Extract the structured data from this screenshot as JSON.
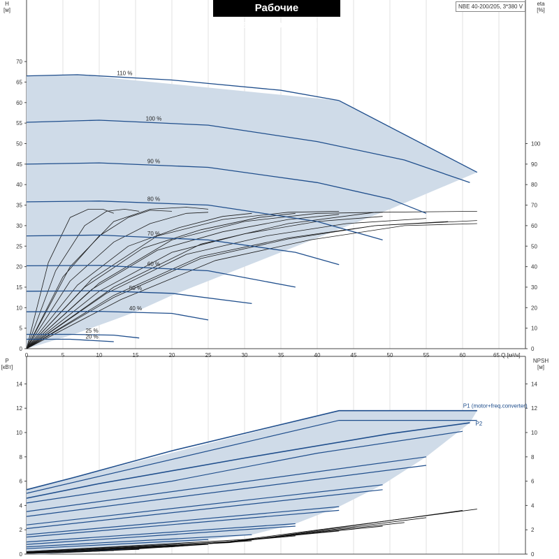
{
  "title": "Рабочие характеристики",
  "model": "NBE 40-200/205, 3*380 V",
  "chart_data": [
    {
      "type": "line",
      "name": "head-efficiency",
      "y_label": "H",
      "y_unit": "[м]",
      "y2_label": "eta",
      "y2_unit": "[%]",
      "x_label": "Q [м³/ч]",
      "x_axis_label": "65 Q [м³/ч]",
      "xlim": [
        0,
        65
      ],
      "ylim": [
        0,
        70
      ],
      "y2lim": [
        0,
        100
      ],
      "x_ticks": [
        0,
        5,
        10,
        15,
        20,
        25,
        30,
        35,
        40,
        45,
        50,
        55,
        60
      ],
      "y_ticks": [
        0,
        5,
        10,
        15,
        20,
        25,
        30,
        35,
        40,
        45,
        50,
        55,
        60,
        65,
        70
      ],
      "y2_ticks": [
        0,
        10,
        20,
        30,
        40,
        50,
        60,
        70,
        80,
        90,
        100
      ],
      "grid": true,
      "envelope": [
        [
          0,
          66.5
        ],
        [
          7,
          66.8
        ],
        [
          43,
          60.5
        ],
        [
          62,
          43
        ],
        [
          50,
          34
        ],
        [
          40,
          27
        ],
        [
          30,
          20
        ],
        [
          20,
          13
        ],
        [
          15,
          9
        ],
        [
          12,
          7
        ],
        [
          6.5,
          3.5
        ],
        [
          0,
          0
        ]
      ],
      "head_curves": [
        {
          "label": "110 %",
          "x": [
            0,
            7,
            20,
            35,
            43
          ],
          "y": [
            66.5,
            66.8,
            65.5,
            63,
            60.5
          ]
        },
        {
          "label": "100 %",
          "x": [
            0,
            10,
            25,
            40,
            52,
            61
          ],
          "y": [
            55.2,
            55.7,
            54.5,
            50.5,
            46,
            40.5
          ]
        },
        {
          "label": "90 %",
          "x": [
            0,
            10,
            25,
            40,
            50,
            55
          ],
          "y": [
            45,
            45.3,
            44.2,
            40.5,
            36.5,
            33
          ]
        },
        {
          "label": "80 %",
          "x": [
            0,
            10,
            25,
            40,
            49
          ],
          "y": [
            35.8,
            36,
            35,
            31,
            26.5
          ]
        },
        {
          "label": "70 %",
          "x": [
            0,
            10,
            25,
            37,
            43
          ],
          "y": [
            27.5,
            27.7,
            26.5,
            23.5,
            20.5
          ]
        },
        {
          "label": "60 %",
          "x": [
            0,
            10,
            25,
            37
          ],
          "y": [
            20.2,
            20.3,
            19,
            15
          ]
        },
        {
          "label": "50 %",
          "x": [
            0,
            10,
            20,
            31
          ],
          "y": [
            14,
            14.1,
            13.5,
            11
          ]
        },
        {
          "label": "40 %",
          "x": [
            0,
            10,
            20,
            25
          ],
          "y": [
            9,
            9.1,
            8.6,
            7
          ]
        },
        {
          "label": "25 %",
          "x": [
            0,
            6,
            12,
            15.5
          ],
          "y": [
            3.5,
            3.5,
            3.3,
            2.6
          ]
        },
        {
          "label": "20 %",
          "x": [
            0,
            6,
            12
          ],
          "y": [
            2.3,
            2.3,
            1.7
          ]
        }
      ],
      "eta_curves": [
        {
          "x": [
            0,
            3,
            6,
            8.5,
            10.5,
            12
          ],
          "y": [
            0,
            42,
            64,
            68,
            68,
            66
          ]
        },
        {
          "x": [
            0,
            4,
            8,
            11,
            13.5,
            15.5
          ],
          "y": [
            0,
            38,
            60,
            67,
            68,
            67
          ]
        },
        {
          "x": [
            0,
            5,
            10,
            14,
            17,
            20
          ],
          "y": [
            0,
            35,
            55,
            64,
            67.5,
            67
          ]
        },
        {
          "x": [
            0,
            6,
            12,
            17,
            22,
            25
          ],
          "y": [
            0,
            33,
            52,
            61,
            66,
            66.5
          ]
        },
        {
          "x": [
            0,
            7,
            14,
            21,
            27,
            31
          ],
          "y": [
            0,
            31,
            50,
            59,
            64.5,
            66
          ]
        },
        {
          "x": [
            0,
            8,
            16,
            24,
            32,
            37
          ],
          "y": [
            0,
            30,
            49,
            58,
            64,
            66
          ]
        },
        {
          "x": [
            0,
            9,
            18,
            27,
            36,
            43
          ],
          "y": [
            0,
            29,
            48,
            57,
            63,
            65.5
          ]
        },
        {
          "x": [
            0,
            10,
            20,
            30,
            40,
            49
          ],
          "y": [
            0,
            28,
            47,
            56,
            62,
            64.5
          ]
        },
        {
          "x": [
            0,
            11,
            22,
            33,
            44,
            55
          ],
          "y": [
            0,
            27,
            46,
            55,
            61,
            63.5
          ]
        },
        {
          "x": [
            0,
            12,
            24,
            36,
            48,
            62
          ],
          "y": [
            0,
            26,
            45,
            54,
            60,
            62.5
          ]
        },
        {
          "x": [
            0,
            12,
            24,
            36,
            48,
            58
          ],
          "y": [
            0,
            25,
            44,
            53.5,
            60,
            62
          ]
        },
        {
          "x": [
            0,
            13,
            26,
            39,
            52,
            62
          ],
          "y": [
            0,
            24,
            43,
            53,
            60,
            61
          ]
        },
        {
          "x": [
            0,
            6,
            12,
            17,
            22,
            25
          ],
          "y": [
            0,
            40,
            62,
            68,
            69,
            68
          ]
        },
        {
          "x": [
            0,
            9,
            18,
            27,
            36,
            43
          ],
          "y": [
            0,
            34,
            55,
            63,
            66.5,
            67
          ]
        },
        {
          "x": [
            0,
            12,
            24,
            36,
            48,
            62
          ],
          "y": [
            0,
            30,
            51,
            61,
            66.5,
            67
          ]
        },
        {
          "x": [
            0,
            10,
            20,
            30,
            40,
            49
          ],
          "y": [
            0,
            32,
            53,
            62,
            66,
            66.5
          ]
        }
      ]
    },
    {
      "type": "line",
      "name": "power-npsh",
      "y_label": "P",
      "y_unit": "[кВт]",
      "y2_label": "NPSH",
      "y2_unit": "[м]",
      "xlim": [
        0,
        65
      ],
      "ylim": [
        0,
        15
      ],
      "y_ticks": [
        0,
        2,
        4,
        6,
        8,
        10,
        12,
        14
      ],
      "y2_ticks": [
        0,
        2,
        4,
        6,
        8,
        10,
        12,
        14
      ],
      "grid": true,
      "envelope": [
        [
          0,
          5.3
        ],
        [
          6.5,
          6.3
        ],
        [
          43,
          11.8
        ],
        [
          62,
          11.8
        ],
        [
          61,
          10.8
        ],
        [
          55,
          8
        ],
        [
          49,
          5.7
        ],
        [
          43,
          3.9
        ],
        [
          37,
          2.5
        ],
        [
          31,
          1.6
        ],
        [
          25,
          1.2
        ],
        [
          15.5,
          0.4
        ],
        [
          12,
          0.3
        ],
        [
          2.5,
          0
        ],
        [
          0,
          0
        ]
      ],
      "series": [
        {
          "name": "P1 (motor+freq.converter)",
          "x": [
            0,
            6.5,
            20,
            43,
            62
          ],
          "y": [
            5.3,
            6.3,
            8.5,
            11.8,
            11.8
          ]
        },
        {
          "name": "P2",
          "x": [
            0,
            10,
            30,
            50,
            61
          ],
          "y": [
            4.6,
            5.8,
            7.9,
            9.9,
            10.8
          ]
        }
      ],
      "power_lines": [
        {
          "x": [
            0,
            43,
            62
          ],
          "y": [
            5.0,
            11.0,
            11.0
          ]
        },
        {
          "x": [
            0,
            20,
            40,
            60
          ],
          "y": [
            4.2,
            6.0,
            8.3,
            10.1
          ]
        },
        {
          "x": [
            0,
            55
          ],
          "y": [
            3.5,
            8.0
          ]
        },
        {
          "x": [
            0,
            55
          ],
          "y": [
            3.1,
            7.3
          ]
        },
        {
          "x": [
            0,
            49
          ],
          "y": [
            2.4,
            5.7
          ]
        },
        {
          "x": [
            0,
            49
          ],
          "y": [
            2.1,
            5.3
          ]
        },
        {
          "x": [
            0,
            43
          ],
          "y": [
            1.6,
            3.9
          ]
        },
        {
          "x": [
            0,
            43
          ],
          "y": [
            1.4,
            3.6
          ]
        },
        {
          "x": [
            0,
            37
          ],
          "y": [
            1.0,
            2.5
          ]
        },
        {
          "x": [
            0,
            37
          ],
          "y": [
            0.8,
            2.3
          ]
        },
        {
          "x": [
            0,
            31
          ],
          "y": [
            0.6,
            1.6
          ]
        },
        {
          "x": [
            0,
            25
          ],
          "y": [
            0.45,
            1.2
          ]
        },
        {
          "x": [
            0,
            15.5
          ],
          "y": [
            0.2,
            0.4
          ]
        },
        {
          "x": [
            0,
            12
          ],
          "y": [
            0.15,
            0.3
          ]
        }
      ],
      "npsh_curves": [
        {
          "x": [
            0,
            30,
            62
          ],
          "y": [
            0.2,
            1.2,
            3.7
          ]
        },
        {
          "x": [
            0,
            30,
            60
          ],
          "y": [
            0.2,
            1.1,
            3.6
          ]
        },
        {
          "x": [
            0,
            28,
            55
          ],
          "y": [
            0.15,
            0.95,
            3.0
          ]
        },
        {
          "x": [
            0,
            26,
            52
          ],
          "y": [
            0.15,
            0.9,
            2.6
          ]
        },
        {
          "x": [
            0,
            24,
            49
          ],
          "y": [
            0.1,
            0.8,
            2.3
          ]
        },
        {
          "x": [
            0,
            22,
            43
          ],
          "y": [
            0.1,
            0.7,
            1.9
          ]
        },
        {
          "x": [
            0,
            20,
            37
          ],
          "y": [
            0.1,
            0.6,
            1.5
          ]
        },
        {
          "x": [
            0,
            16,
            31
          ],
          "y": [
            0.1,
            0.5,
            1.1
          ]
        },
        {
          "x": [
            0,
            13,
            25
          ],
          "y": [
            0.05,
            0.35,
            0.8
          ]
        },
        {
          "x": [
            0,
            8,
            15.5
          ],
          "y": [
            0.05,
            0.2,
            0.4
          ]
        },
        {
          "x": [
            0,
            6,
            12
          ],
          "y": [
            0.05,
            0.15,
            0.3
          ]
        }
      ]
    }
  ]
}
